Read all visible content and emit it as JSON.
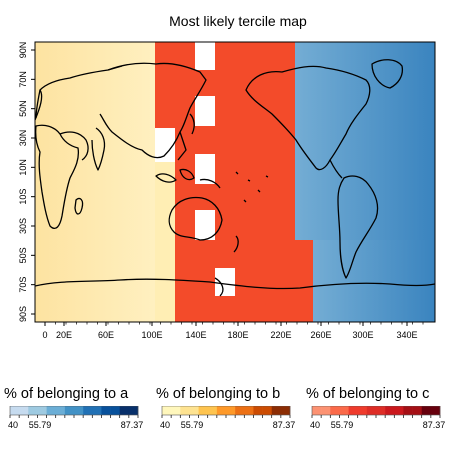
{
  "title": "Most likely tercile map",
  "chart_data": {
    "type": "heatmap",
    "title": "Most likely tercile map",
    "x_ticks": [
      "0",
      "20E",
      "60E",
      "100E",
      "140E",
      "180E",
      "220E",
      "260E",
      "300E",
      "340E"
    ],
    "y_ticks": [
      "90N",
      "70N",
      "50N",
      "30N",
      "10N",
      "10S",
      "30S",
      "50S",
      "70S",
      "90S"
    ],
    "grid": false,
    "regions": [
      {
        "category": "b",
        "lon_from": 0,
        "lon_to": 120
      },
      {
        "category": "c",
        "lon_from": 120,
        "lon_to": 240
      },
      {
        "category": "a",
        "lon_from": 240,
        "lon_to": 360
      }
    ]
  },
  "legends": [
    {
      "key": "a",
      "title": "% of belonging to a",
      "min": "40",
      "mid": "55.79",
      "max": "87.37",
      "colors": [
        "#c6dbef",
        "#9ecae1",
        "#6baed6",
        "#4292c6",
        "#2171b5",
        "#08519c",
        "#08306b"
      ]
    },
    {
      "key": "b",
      "title": "% of belonging to b",
      "min": "40",
      "mid": "55.79",
      "max": "87.37",
      "colors": [
        "#fff7bc",
        "#fee391",
        "#fec44f",
        "#fe9929",
        "#ec7014",
        "#cc4c02",
        "#8c2d04"
      ]
    },
    {
      "key": "c",
      "title": "% of belonging to c",
      "min": "40",
      "mid": "55.79",
      "max": "87.37",
      "colors": [
        "#fc9272",
        "#fb6a4a",
        "#ef3b2c",
        "#de2d26",
        "#cb181d",
        "#a50f15",
        "#67000d"
      ]
    }
  ]
}
